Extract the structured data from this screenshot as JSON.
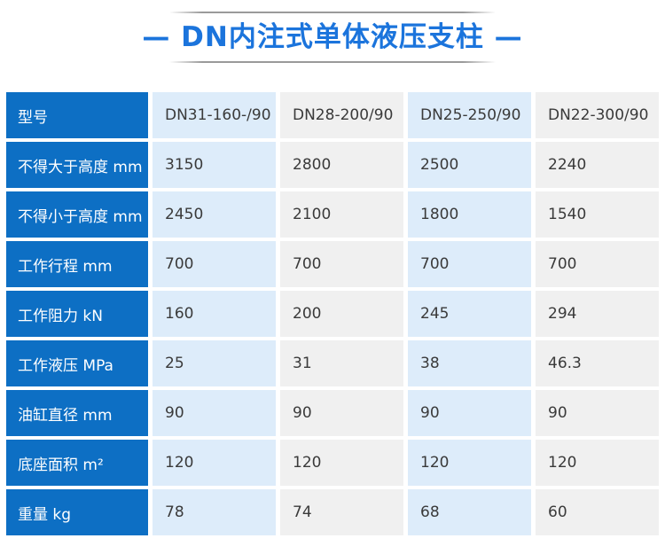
{
  "title": {
    "text": "— DN内注式单体液压支柱 —"
  },
  "colors": {
    "header_blue": "#0d6fc4",
    "title_blue": "#1b74dc",
    "cell_blue": "#ddecfa",
    "cell_gray": "#f0f0f0",
    "rule_gray": "#9a9a9a",
    "text_dark": "#3a3a3a"
  },
  "table": {
    "rows": [
      {
        "label": "型号",
        "values": [
          "DN31-160-/90",
          "DN28-200/90",
          "DN25-250/90",
          "DN22-300/90"
        ]
      },
      {
        "label": "不得大于高度 mm",
        "values": [
          "3150",
          "2800",
          "2500",
          "2240"
        ]
      },
      {
        "label": "不得小于高度 mm",
        "values": [
          "2450",
          "2100",
          "1800",
          "1540"
        ]
      },
      {
        "label": "工作行程 mm",
        "values": [
          "700",
          "700",
          "700",
          "700"
        ]
      },
      {
        "label": "工作阻力 kN",
        "values": [
          "160",
          "200",
          "245",
          "294"
        ]
      },
      {
        "label": "工作液压 MPa",
        "values": [
          "25",
          "31",
          "38",
          "46.3"
        ]
      },
      {
        "label": "油缸直径 mm",
        "values": [
          "90",
          "90",
          "90",
          "90"
        ]
      },
      {
        "label": "底座面积 m²",
        "values": [
          "120",
          "120",
          "120",
          "120"
        ]
      },
      {
        "label": "重量 kg",
        "values": [
          "78",
          "74",
          "68",
          "60"
        ]
      }
    ]
  }
}
